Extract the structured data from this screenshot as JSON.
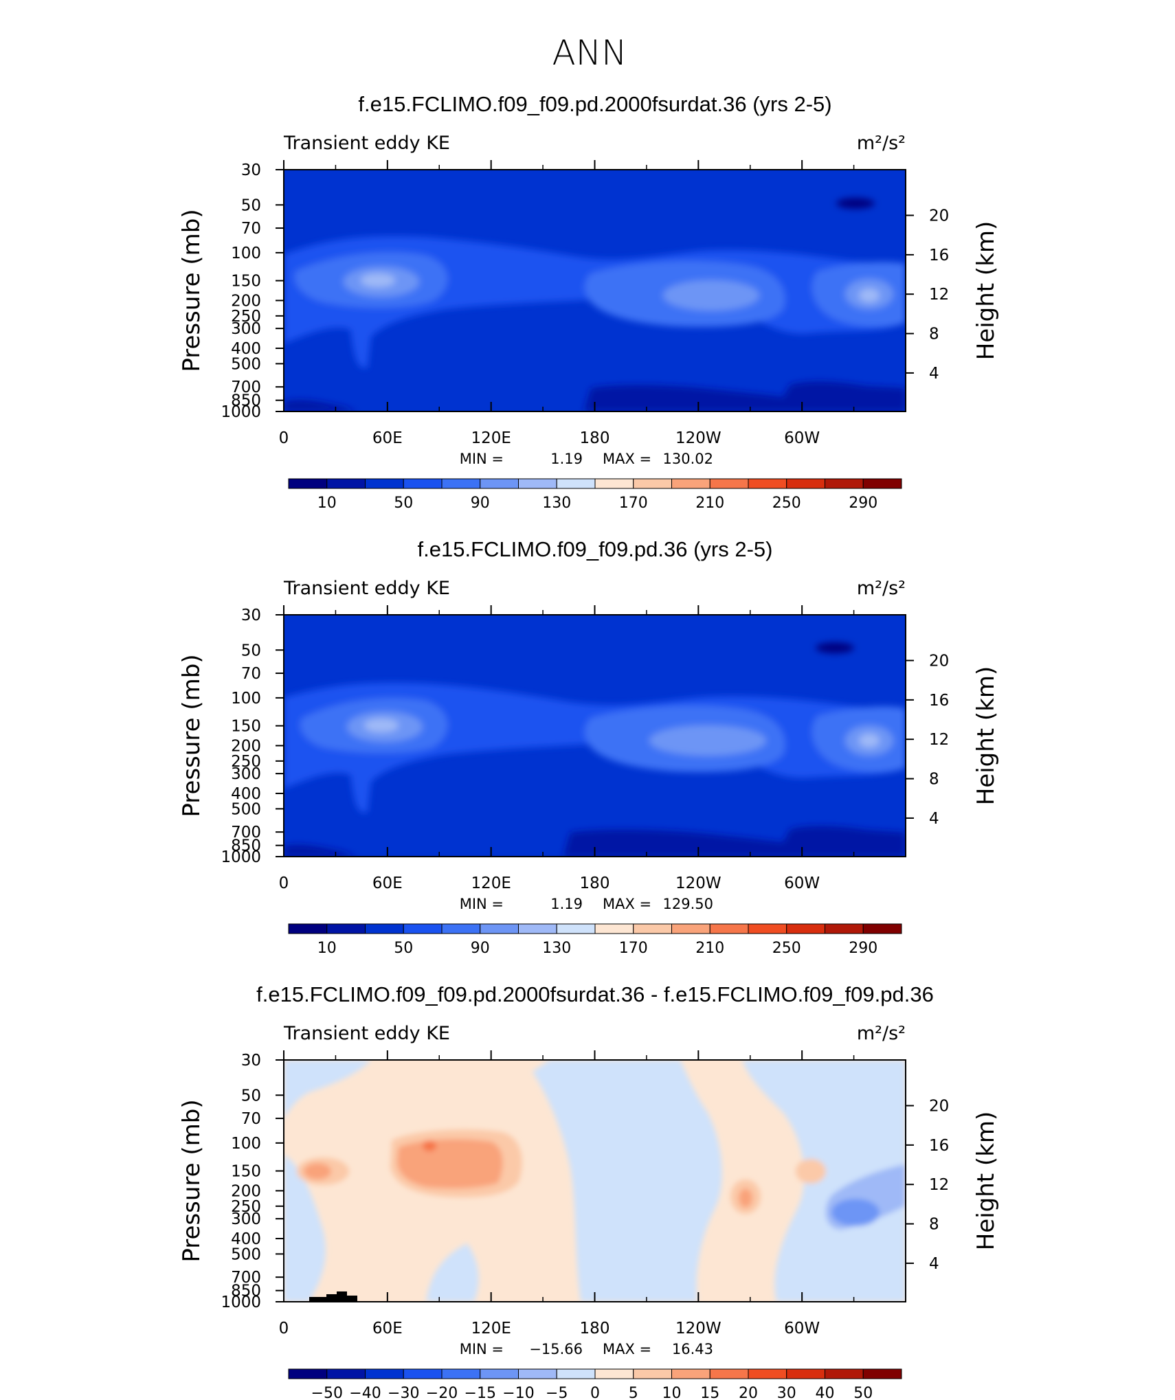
{
  "page_title": "ANN",
  "chart_data": [
    {
      "type": "heatmap",
      "title": "f.e15.FCLIMO.f09_f09.pd.2000fsurdat.36 (yrs 2-5)",
      "left_label": "Transient eddy KE",
      "units": "m²/s²",
      "xlabel": "",
      "ylabel": "Pressure (mb)",
      "y2label": "Height (km)",
      "x_tick_labels": [
        "0",
        "60E",
        "120E",
        "180",
        "120W",
        "60W"
      ],
      "y_tick_labels": [
        "30",
        "50",
        "70",
        "100",
        "150",
        "200",
        "250",
        "300",
        "400",
        "500",
        "700",
        "850",
        "1000"
      ],
      "y2_tick_labels": [
        "20",
        "16",
        "12",
        "8",
        "4"
      ],
      "min_label": "MIN =",
      "min_value": "1.19",
      "max_label": "MAX =",
      "max_value": "130.02",
      "colorbar_labels": [
        "10",
        "50",
        "90",
        "130",
        "170",
        "210",
        "250",
        "290"
      ],
      "colorbar_colors": [
        "#00007f",
        "#0014a5",
        "#0033d0",
        "#1a52f0",
        "#3c72f5",
        "#6d95f5",
        "#9fb9f7",
        "#cfe2fb",
        "#fde6d3",
        "#fbc9a8",
        "#f9a37a",
        "#f6764a",
        "#f04d22",
        "#d82e0e",
        "#b01808",
        "#800000"
      ],
      "field_summary": "low values aloft; jet maxima near 150-200 mb over 60E, 120W and 30W"
    },
    {
      "type": "heatmap",
      "title": "f.e15.FCLIMO.f09_f09.pd.36 (yrs 2-5)",
      "left_label": "Transient eddy KE",
      "units": "m²/s²",
      "ylabel": "Pressure (mb)",
      "y2label": "Height (km)",
      "x_tick_labels": [
        "0",
        "60E",
        "120E",
        "180",
        "120W",
        "60W"
      ],
      "y_tick_labels": [
        "30",
        "50",
        "70",
        "100",
        "150",
        "200",
        "250",
        "300",
        "400",
        "500",
        "700",
        "850",
        "1000"
      ],
      "y2_tick_labels": [
        "20",
        "16",
        "12",
        "8",
        "4"
      ],
      "min_label": "MIN =",
      "min_value": "1.19",
      "max_label": "MAX =",
      "max_value": "129.50",
      "colorbar_labels": [
        "10",
        "50",
        "90",
        "130",
        "170",
        "210",
        "250",
        "290"
      ],
      "colorbar_colors": [
        "#00007f",
        "#0014a5",
        "#0033d0",
        "#1a52f0",
        "#3c72f5",
        "#6d95f5",
        "#9fb9f7",
        "#cfe2fb",
        "#fde6d3",
        "#fbc9a8",
        "#f9a37a",
        "#f6764a",
        "#f04d22",
        "#d82e0e",
        "#b01808",
        "#800000"
      ]
    },
    {
      "type": "heatmap",
      "title": "f.e15.FCLIMO.f09_f09.pd.2000fsurdat.36 - f.e15.FCLIMO.f09_f09.pd.36",
      "left_label": "Transient eddy KE",
      "units": "m²/s²",
      "ylabel": "Pressure (mb)",
      "y2label": "Height (km)",
      "x_tick_labels": [
        "0",
        "60E",
        "120E",
        "180",
        "120W",
        "60W"
      ],
      "y_tick_labels": [
        "30",
        "50",
        "70",
        "100",
        "150",
        "200",
        "250",
        "300",
        "400",
        "500",
        "700",
        "850",
        "1000"
      ],
      "y2_tick_labels": [
        "20",
        "16",
        "12",
        "8",
        "4"
      ],
      "min_label": "MIN =",
      "min_value": "−15.66",
      "max_label": "MAX =",
      "max_value": "16.43",
      "colorbar_labels": [
        "−50",
        "−40",
        "−30",
        "−20",
        "−15",
        "−10",
        "−5",
        "0",
        "5",
        "10",
        "15",
        "20",
        "30",
        "40",
        "50"
      ],
      "colorbar_colors": [
        "#00007f",
        "#0014a5",
        "#0033d0",
        "#1a52f0",
        "#3c72f5",
        "#6d95f5",
        "#9fb9f7",
        "#cfe2fb",
        "#fde6d3",
        "#fbc9a8",
        "#f9a37a",
        "#f6764a",
        "#f04d22",
        "#d82e0e",
        "#b01808",
        "#800000"
      ]
    }
  ]
}
